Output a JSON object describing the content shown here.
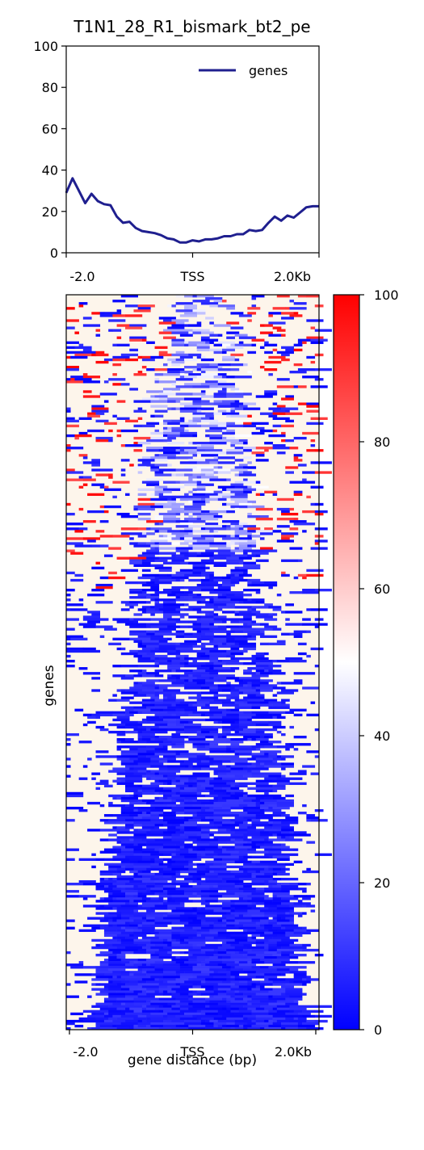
{
  "chart_data": [
    {
      "type": "line",
      "title": "T1N1_28_R1_bismark_bt2_pe",
      "xlabel": "",
      "ylabel": "",
      "ylim": [
        0,
        100
      ],
      "yticks": [
        "0",
        "20",
        "40",
        "60",
        "80",
        "100"
      ],
      "xtick_labels": [
        "-2.0",
        "TSS",
        "2.0Kb"
      ],
      "grid": false,
      "legend": {
        "position": "top-right",
        "entries": [
          "genes"
        ]
      },
      "series": [
        {
          "name": "genes",
          "color": "#1f1f8f",
          "x": [
            -2000,
            -1900,
            -1800,
            -1700,
            -1600,
            -1500,
            -1400,
            -1300,
            -1200,
            -1100,
            -1000,
            -900,
            -800,
            -700,
            -600,
            -500,
            -400,
            -300,
            -200,
            -100,
            0,
            100,
            200,
            300,
            400,
            500,
            600,
            700,
            800,
            900,
            1000,
            1100,
            1200,
            1300,
            1400,
            1500,
            1600,
            1700,
            1800,
            1900,
            2000
          ],
          "values": [
            29,
            36,
            30,
            24,
            28.5,
            25,
            23.5,
            23,
            17.5,
            14.5,
            15,
            12,
            10.5,
            10,
            9.5,
            8.5,
            7,
            6.5,
            5,
            5,
            6,
            5.5,
            6.5,
            6.5,
            7,
            8,
            8,
            9,
            9,
            11,
            10.5,
            11,
            14.5,
            17.5,
            15.5,
            18,
            17,
            19.5,
            22,
            22.5,
            22.5
          ]
        }
      ]
    },
    {
      "type": "heatmap",
      "xlabel": "gene distance (bp)",
      "ylabel": "genes",
      "xtick_labels": [
        "-2.0",
        "TSS",
        "2.0Kb"
      ],
      "x_range": [
        -2000,
        2000
      ],
      "colorbar": {
        "min": 0,
        "max": 100,
        "ticks": [
          "0",
          "20",
          "40",
          "60",
          "80",
          "100"
        ],
        "colors": [
          "#0000ff",
          "#ffffff",
          "#ff0000"
        ]
      },
      "missing_color": "#fdf5eb",
      "description_of_pattern": "rows of genes; low methylation (blue) concentrated around TSS, widening toward bottom rows; high (red) speckles near top"
    }
  ]
}
